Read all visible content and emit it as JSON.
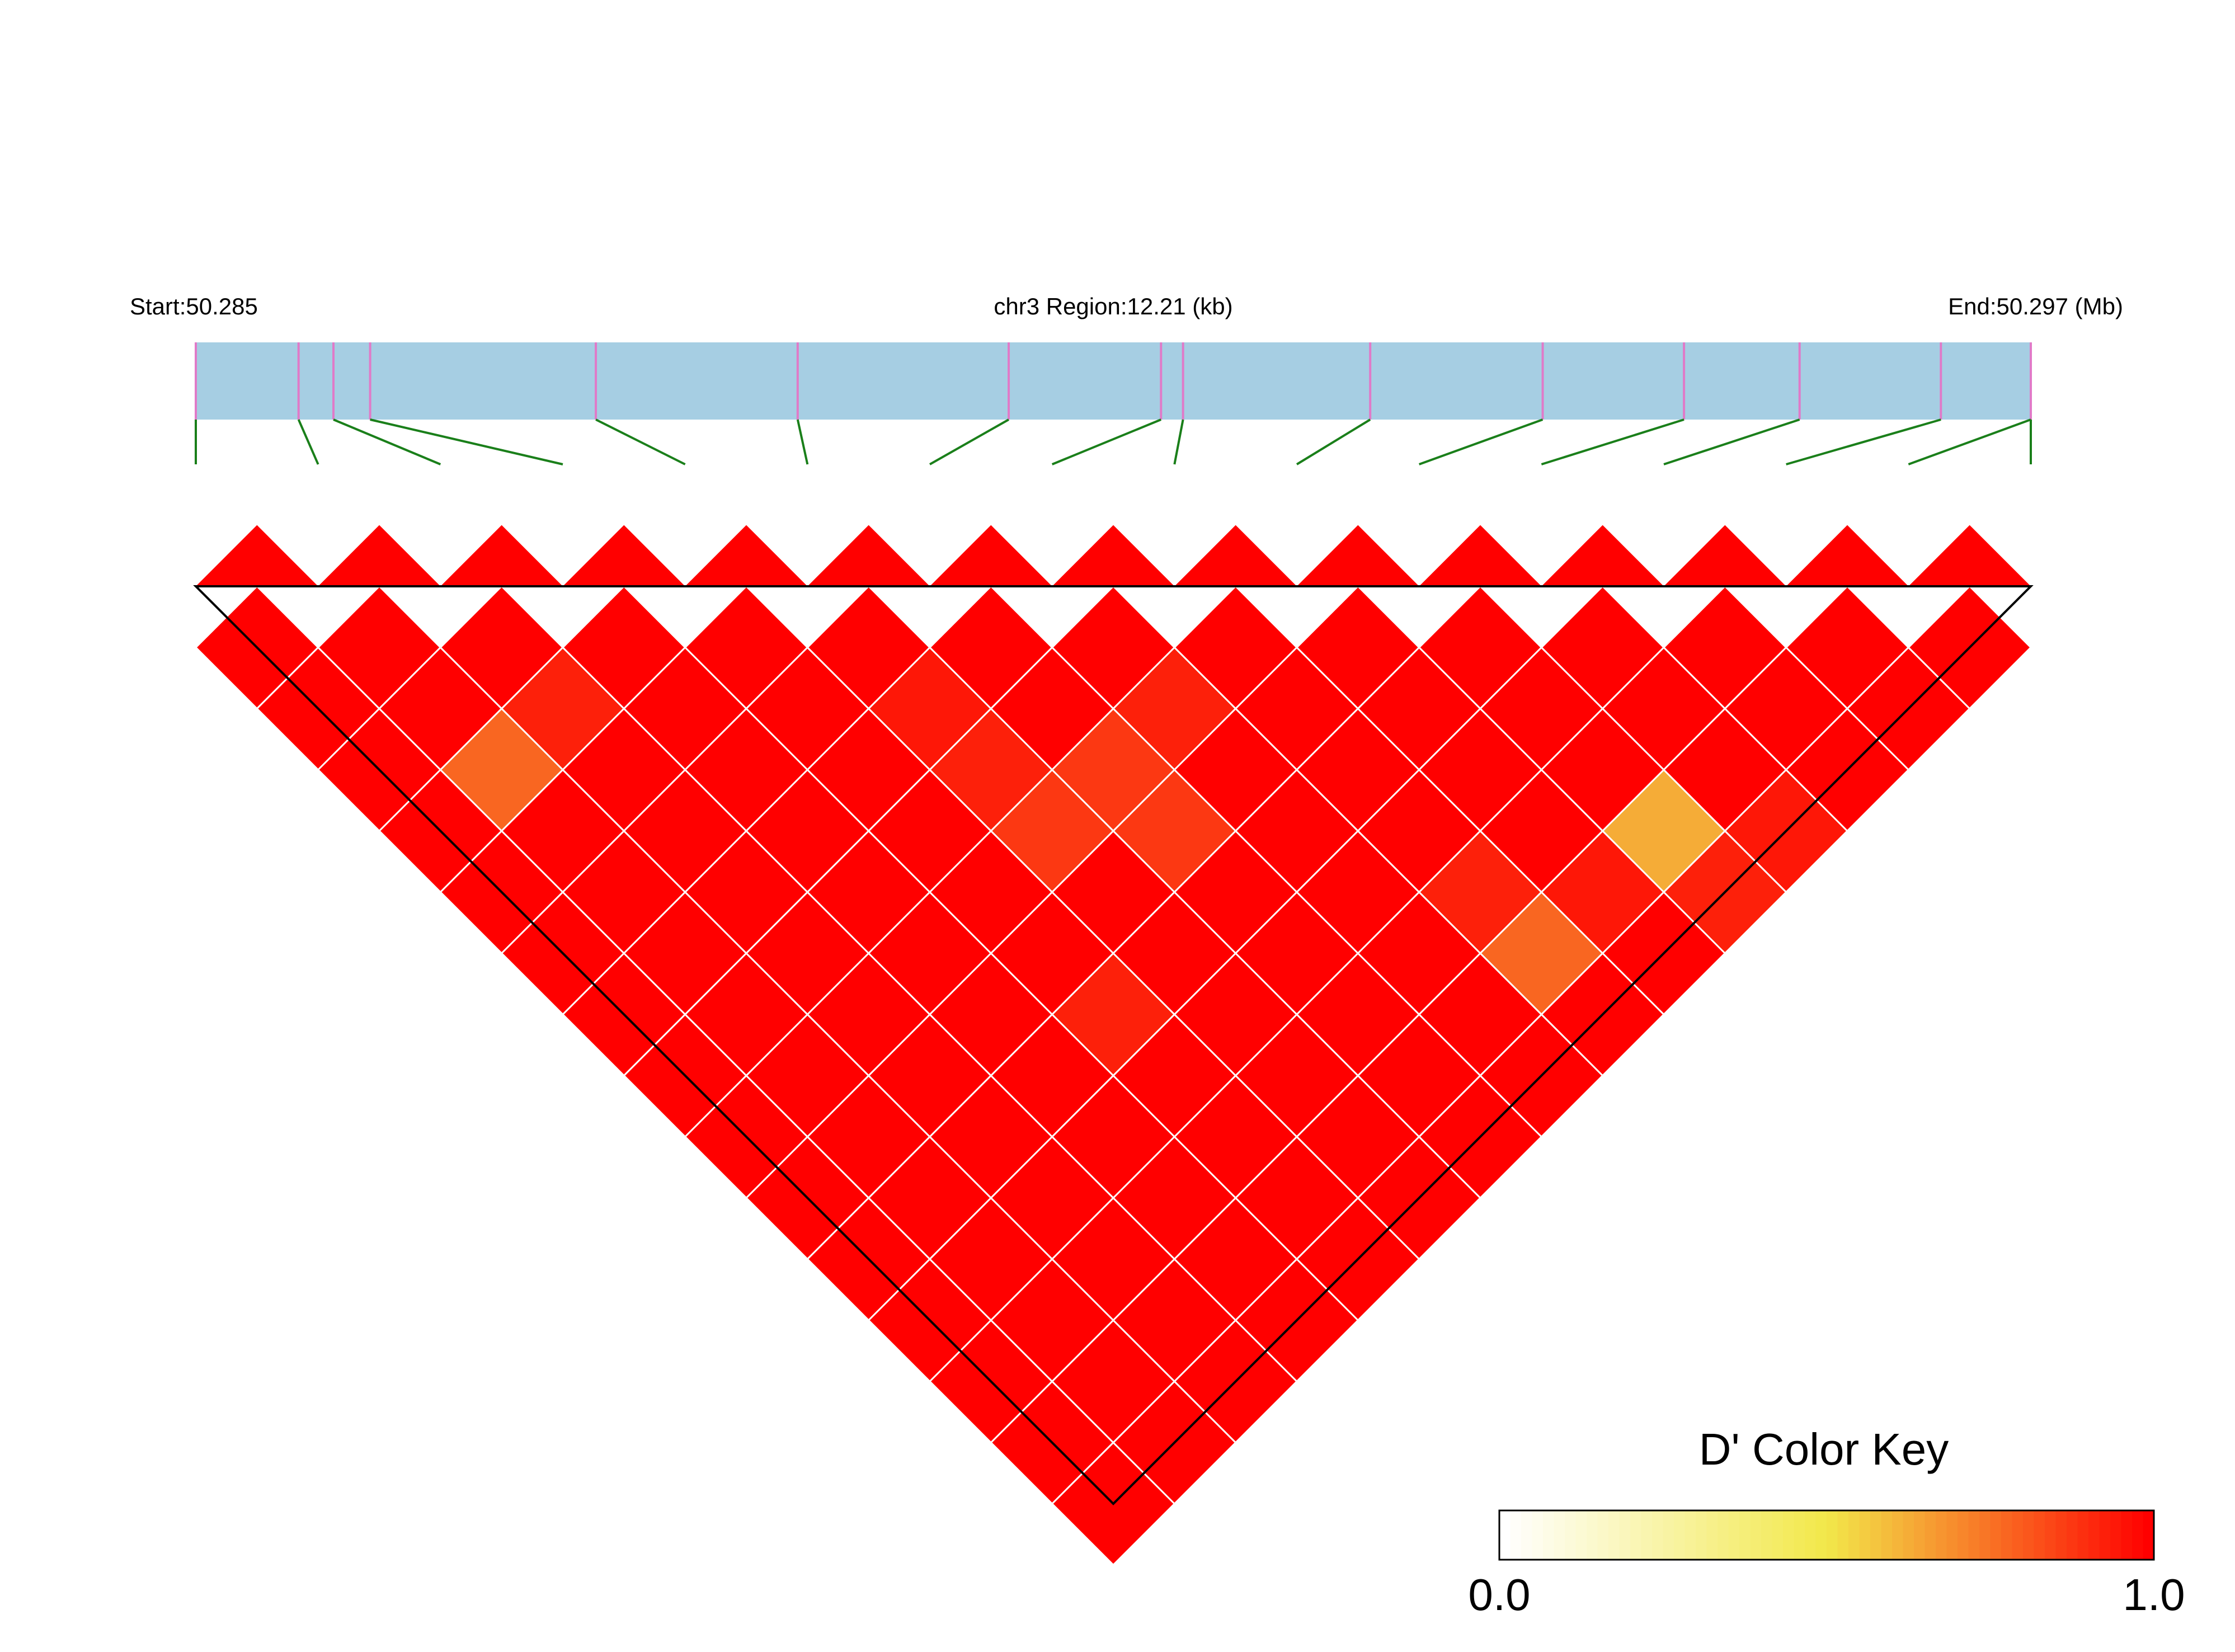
{
  "header": {
    "start_label": "Start:50.285",
    "region_label": "chr3 Region:12.21 (kb)",
    "end_label": "End:50.297 (Mb)"
  },
  "color_key": {
    "title": "D' Color Key",
    "min_label": "0.0",
    "max_label": "1.0"
  },
  "colors": {
    "region_bar": "#a6cee3",
    "snp_tick": "#e07ac8",
    "connector": "#1a7f1a",
    "cell_grid": "#ffffff",
    "outline": "#000000"
  },
  "chart_data": {
    "type": "heatmap",
    "description_scale": "D'",
    "region": {
      "chromosome": "chr3",
      "start_mb": 50.285,
      "end_mb": 50.297,
      "length_kb": 12.21
    },
    "snp_count": 16,
    "snp_positions_fraction": [
      0.0,
      0.056,
      0.075,
      0.095,
      0.218,
      0.328,
      0.443,
      0.526,
      0.538,
      0.64,
      0.734,
      0.811,
      0.874,
      0.951,
      1.0,
      1.0
    ],
    "default_value": 1.0,
    "cells": [
      {
        "i": 1,
        "j": 4,
        "value": 0.78
      },
      {
        "i": 2,
        "j": 4,
        "value": 0.93
      },
      {
        "i": 5,
        "j": 7,
        "value": 0.95
      },
      {
        "i": 5,
        "j": 8,
        "value": 0.93
      },
      {
        "i": 5,
        "j": 9,
        "value": 0.88
      },
      {
        "i": 6,
        "j": 9,
        "value": 0.88
      },
      {
        "i": 6,
        "j": 10,
        "value": 0.88
      },
      {
        "i": 7,
        "j": 9,
        "value": 0.93
      },
      {
        "i": 4,
        "j": 11,
        "value": 0.93
      },
      {
        "i": 8,
        "j": 13,
        "value": 0.93
      },
      {
        "i": 8,
        "j": 14,
        "value": 0.78
      },
      {
        "i": 9,
        "j": 14,
        "value": 0.95
      },
      {
        "i": 10,
        "j": 14,
        "value": 0.63
      },
      {
        "i": 10,
        "j": 15,
        "value": 0.93
      },
      {
        "i": 11,
        "j": 15,
        "value": 0.95
      }
    ],
    "color_scale": {
      "min": 0.0,
      "max": 1.0,
      "stops": [
        "#ffffff",
        "#f2e84a",
        "#ff0000"
      ]
    }
  }
}
